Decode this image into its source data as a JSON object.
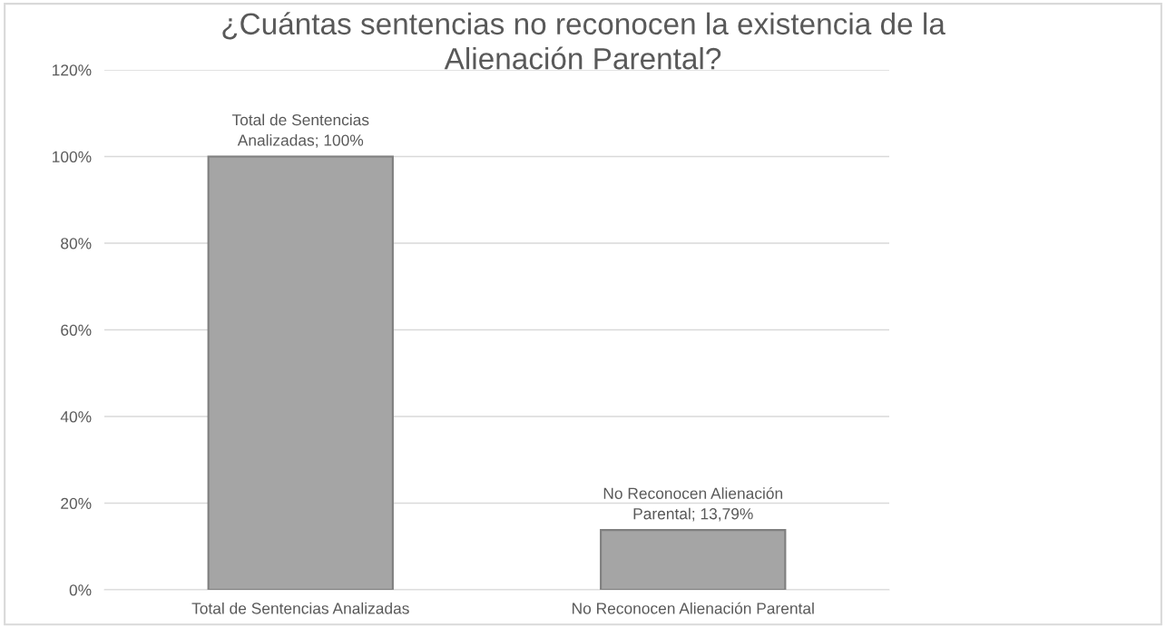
{
  "chart_data": {
    "type": "bar",
    "title": "¿Cuántas sentencias no reconocen la existencia de la Alienación Parental?",
    "categories": [
      "Total de Sentencias Analizadas",
      "No Reconocen Alienación Parental"
    ],
    "values": [
      100,
      13.79
    ],
    "color": "#a5a5a5",
    "value_labels": [
      "Total de Sentencias Analizadas; 100%",
      "No Reconocen Alienación Parental; 13,79%"
    ],
    "ylim": [
      0,
      120
    ],
    "yticks": [
      {
        "value": 0,
        "label": "0%"
      },
      {
        "value": 20,
        "label": "20%"
      },
      {
        "value": 40,
        "label": "40%"
      },
      {
        "value": 60,
        "label": "60%"
      },
      {
        "value": 80,
        "label": "80%"
      },
      {
        "value": 100,
        "label": "100%"
      },
      {
        "value": 120,
        "label": "120%"
      }
    ],
    "grid": "y",
    "legend": false
  }
}
